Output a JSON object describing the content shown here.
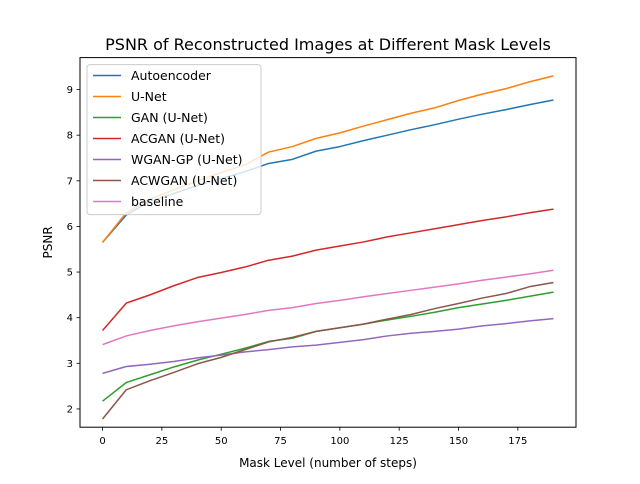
{
  "chart_data": {
    "type": "line",
    "title": "PSNR of Reconstructed Images at Different Mask Levels",
    "xlabel": "Mask Level (number of steps)",
    "ylabel": "PSNR",
    "xlim": [
      -9.5,
      199.5
    ],
    "ylim": [
      1.6,
      9.7
    ],
    "xticks": [
      0,
      25,
      50,
      75,
      100,
      125,
      150,
      175
    ],
    "yticks": [
      2,
      3,
      4,
      5,
      6,
      7,
      8,
      9
    ],
    "grid": false,
    "legend_position": "upper-left",
    "x": [
      0,
      10,
      20,
      30,
      40,
      50,
      60,
      70,
      80,
      90,
      100,
      110,
      120,
      130,
      140,
      150,
      160,
      170,
      180,
      190
    ],
    "series": [
      {
        "name": "Autoencoder",
        "color": "#1f77b4",
        "values": [
          5.65,
          6.25,
          6.55,
          6.72,
          6.9,
          7.05,
          7.2,
          7.38,
          7.47,
          7.65,
          7.75,
          7.88,
          8.0,
          8.12,
          8.23,
          8.35,
          8.46,
          8.56,
          8.67,
          8.77
        ]
      },
      {
        "name": "U-Net",
        "color": "#ff7f0e",
        "values": [
          5.65,
          6.3,
          6.6,
          6.8,
          7.0,
          7.18,
          7.35,
          7.63,
          7.75,
          7.93,
          8.05,
          8.2,
          8.34,
          8.48,
          8.6,
          8.76,
          8.9,
          9.02,
          9.17,
          9.3
        ]
      },
      {
        "name": "GAN (U-Net)",
        "color": "#2ca02c",
        "values": [
          2.17,
          2.58,
          2.75,
          2.92,
          3.07,
          3.2,
          3.33,
          3.48,
          3.55,
          3.7,
          3.78,
          3.86,
          3.95,
          4.03,
          4.12,
          4.22,
          4.3,
          4.38,
          4.47,
          4.56
        ]
      },
      {
        "name": "ACGAN (U-Net)",
        "color": "#d62728",
        "values": [
          3.72,
          4.32,
          4.5,
          4.7,
          4.88,
          4.99,
          5.11,
          5.26,
          5.35,
          5.48,
          5.57,
          5.66,
          5.77,
          5.86,
          5.95,
          6.04,
          6.13,
          6.21,
          6.3,
          6.38
        ]
      },
      {
        "name": "WGAN-GP (U-Net)",
        "color": "#9467bd",
        "values": [
          2.78,
          2.93,
          2.98,
          3.04,
          3.12,
          3.18,
          3.25,
          3.3,
          3.36,
          3.4,
          3.46,
          3.52,
          3.6,
          3.66,
          3.7,
          3.75,
          3.82,
          3.87,
          3.93,
          3.98
        ]
      },
      {
        "name": "ACWGAN (U-Net)",
        "color": "#8c564b",
        "values": [
          1.78,
          2.42,
          2.62,
          2.8,
          2.99,
          3.13,
          3.3,
          3.47,
          3.57,
          3.7,
          3.78,
          3.86,
          3.97,
          4.07,
          4.2,
          4.31,
          4.43,
          4.53,
          4.68,
          4.77
        ]
      },
      {
        "name": "baseline",
        "color": "#e377c2",
        "values": [
          3.41,
          3.6,
          3.72,
          3.82,
          3.91,
          3.99,
          4.07,
          4.16,
          4.22,
          4.31,
          4.38,
          4.46,
          4.53,
          4.6,
          4.67,
          4.74,
          4.82,
          4.89,
          4.96,
          5.04
        ]
      }
    ]
  }
}
